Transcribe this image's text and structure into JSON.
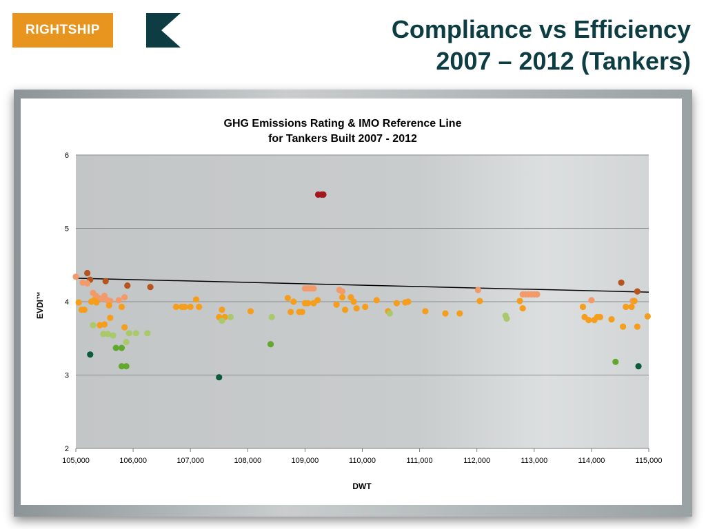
{
  "brand": {
    "name": "RIGHTSHIP",
    "logo_color": "#e8951f",
    "mark_color": "#0d3d42",
    "mark_icon": "k-chevron-icon"
  },
  "page_title": {
    "line1": "Compliance vs Efficiency",
    "line2": "2007 – 2012 (Tankers)",
    "color": "#0d3d42"
  },
  "chart_data": {
    "type": "scatter",
    "title": [
      "GHG Emissions Rating & IMO Reference Line",
      "for Tankers Built 2007 - 2012"
    ],
    "xlabel": "DWT",
    "ylabel": "EVDI™",
    "xlim": [
      105000,
      115000
    ],
    "ylim": [
      2,
      6
    ],
    "x_ticks": [
      "105,000",
      "106,000",
      "107,000",
      "108,000",
      "109,000",
      "110,000",
      "111,000",
      "112,000",
      "113,000",
      "114,000",
      "115,000"
    ],
    "y_ticks": [
      "2",
      "3",
      "4",
      "5",
      "6"
    ],
    "grid": "horizontal",
    "plot_background": "sea-photo-gray",
    "rating_colors": {
      "G": "#a3171f",
      "F": "#b5541d",
      "E": "#f29a6a",
      "D": "#f59e1e",
      "C": "#a9c96a",
      "B": "#62a82f",
      "A": "#0d5a3d"
    },
    "reference_line": {
      "x": [
        105000,
        115000
      ],
      "y": [
        4.32,
        4.13
      ],
      "color": "#000000"
    },
    "series": [
      {
        "rating": "G",
        "points": [
          [
            109230,
            5.46
          ],
          [
            109290,
            5.46
          ],
          [
            109320,
            5.46
          ]
        ]
      },
      {
        "rating": "F",
        "points": [
          [
            105200,
            4.39
          ],
          [
            105250,
            4.3
          ],
          [
            105520,
            4.28
          ],
          [
            105900,
            4.22
          ],
          [
            106300,
            4.2
          ],
          [
            114520,
            4.26
          ],
          [
            114800,
            4.14
          ]
        ]
      },
      {
        "rating": "E",
        "points": [
          [
            105000,
            4.34
          ],
          [
            105120,
            4.26
          ],
          [
            105200,
            4.25
          ],
          [
            105300,
            4.12
          ],
          [
            105350,
            4.08
          ],
          [
            105400,
            4.05
          ],
          [
            105450,
            4.04
          ],
          [
            105500,
            4.08
          ],
          [
            105550,
            4.02
          ],
          [
            105600,
            4.01
          ],
          [
            105750,
            4.02
          ],
          [
            105850,
            4.06
          ],
          [
            109000,
            4.18
          ],
          [
            109050,
            4.18
          ],
          [
            109100,
            4.18
          ],
          [
            109150,
            4.18
          ],
          [
            109600,
            4.16
          ],
          [
            109650,
            4.14
          ],
          [
            112020,
            4.16
          ],
          [
            112800,
            4.1
          ],
          [
            112850,
            4.1
          ],
          [
            112900,
            4.1
          ],
          [
            112950,
            4.1
          ],
          [
            113000,
            4.1
          ],
          [
            113050,
            4.1
          ],
          [
            114000,
            4.02
          ],
          [
            114720,
            4.01
          ]
        ]
      },
      {
        "rating": "D",
        "points": [
          [
            105050,
            3.99
          ],
          [
            105100,
            3.89
          ],
          [
            105150,
            3.89
          ],
          [
            105270,
            4.0
          ],
          [
            105320,
            4.02
          ],
          [
            105360,
            3.99
          ],
          [
            105420,
            3.68
          ],
          [
            105500,
            3.69
          ],
          [
            105580,
            3.95
          ],
          [
            105600,
            3.78
          ],
          [
            105800,
            3.93
          ],
          [
            105850,
            3.65
          ],
          [
            106750,
            3.93
          ],
          [
            106850,
            3.93
          ],
          [
            106900,
            3.93
          ],
          [
            107000,
            3.93
          ],
          [
            107100,
            4.03
          ],
          [
            107150,
            3.93
          ],
          [
            107500,
            3.79
          ],
          [
            107550,
            3.89
          ],
          [
            107600,
            3.79
          ],
          [
            108050,
            3.87
          ],
          [
            108700,
            4.05
          ],
          [
            108750,
            3.86
          ],
          [
            108800,
            4.0
          ],
          [
            108900,
            3.86
          ],
          [
            108950,
            3.86
          ],
          [
            109000,
            3.98
          ],
          [
            109050,
            3.98
          ],
          [
            109150,
            3.98
          ],
          [
            109220,
            4.02
          ],
          [
            109550,
            3.96
          ],
          [
            109650,
            4.06
          ],
          [
            109700,
            3.89
          ],
          [
            109800,
            4.06
          ],
          [
            109850,
            4.0
          ],
          [
            109900,
            3.91
          ],
          [
            110050,
            3.93
          ],
          [
            110250,
            4.02
          ],
          [
            110450,
            3.87
          ],
          [
            110600,
            3.98
          ],
          [
            110750,
            3.99
          ],
          [
            110800,
            4.0
          ],
          [
            111100,
            3.87
          ],
          [
            111450,
            3.84
          ],
          [
            111700,
            3.84
          ],
          [
            112050,
            4.01
          ],
          [
            112750,
            4.01
          ],
          [
            112800,
            3.91
          ],
          [
            113850,
            3.93
          ],
          [
            113880,
            3.79
          ],
          [
            113950,
            3.75
          ],
          [
            114050,
            3.75
          ],
          [
            114100,
            3.79
          ],
          [
            114150,
            3.79
          ],
          [
            114350,
            3.76
          ],
          [
            114550,
            3.66
          ],
          [
            114600,
            3.93
          ],
          [
            114700,
            3.93
          ],
          [
            114750,
            4.01
          ],
          [
            114800,
            3.66
          ],
          [
            114980,
            3.8
          ]
        ]
      },
      {
        "rating": "C",
        "points": [
          [
            105300,
            3.68
          ],
          [
            105480,
            3.56
          ],
          [
            105560,
            3.56
          ],
          [
            105650,
            3.54
          ],
          [
            105880,
            3.45
          ],
          [
            105930,
            3.57
          ],
          [
            106050,
            3.57
          ],
          [
            106250,
            3.57
          ],
          [
            107550,
            3.74
          ],
          [
            107700,
            3.79
          ],
          [
            108420,
            3.79
          ],
          [
            110480,
            3.84
          ],
          [
            112500,
            3.81
          ],
          [
            112520,
            3.77
          ]
        ]
      },
      {
        "rating": "B",
        "points": [
          [
            105700,
            3.37
          ],
          [
            105800,
            3.37
          ],
          [
            105800,
            3.12
          ],
          [
            105880,
            3.12
          ],
          [
            108400,
            3.42
          ],
          [
            114420,
            3.18
          ]
        ]
      },
      {
        "rating": "A",
        "points": [
          [
            105250,
            3.28
          ],
          [
            107500,
            2.97
          ],
          [
            114820,
            3.12
          ]
        ]
      }
    ]
  }
}
